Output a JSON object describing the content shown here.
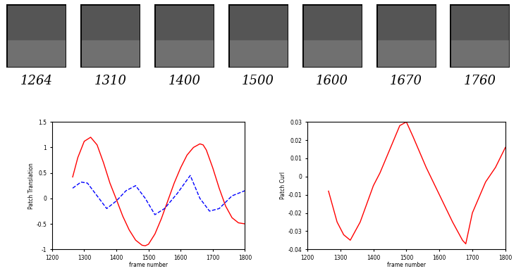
{
  "frames": [
    "1264",
    "1310",
    "1400",
    "1500",
    "1600",
    "1670",
    "1760"
  ],
  "chart_data": [
    {
      "type": "line",
      "xlabel": "frame number",
      "ylabel": "Patch Translation",
      "xlim": [
        1200,
        1800
      ],
      "xticks": [
        1200,
        1300,
        1400,
        1500,
        1600,
        1700,
        1800
      ],
      "ylim": [
        -1,
        1.5
      ],
      "yticks": [
        -1,
        -0.5,
        0,
        0.5,
        1,
        1.5
      ],
      "series": [
        {
          "color": "#ff0000",
          "line_style": "solid",
          "x": [
            1264,
            1280,
            1300,
            1320,
            1340,
            1360,
            1380,
            1400,
            1420,
            1440,
            1460,
            1480,
            1490,
            1500,
            1520,
            1540,
            1560,
            1580,
            1600,
            1620,
            1640,
            1660,
            1670,
            1680,
            1700,
            1720,
            1740,
            1760,
            1780,
            1800
          ],
          "values": [
            0.42,
            0.8,
            1.12,
            1.2,
            1.05,
            0.7,
            0.3,
            -0.02,
            -0.35,
            -0.62,
            -0.82,
            -0.92,
            -0.93,
            -0.9,
            -0.7,
            -0.4,
            -0.05,
            0.3,
            0.6,
            0.85,
            1.0,
            1.07,
            1.05,
            0.95,
            0.6,
            0.2,
            -0.15,
            -0.38,
            -0.48,
            -0.5
          ]
        },
        {
          "color": "#0000ff",
          "line_style": "dashed",
          "x": [
            1264,
            1290,
            1310,
            1340,
            1370,
            1400,
            1430,
            1460,
            1490,
            1520,
            1550,
            1590,
            1630,
            1660,
            1690,
            1720,
            1760,
            1800
          ],
          "values": [
            0.2,
            0.32,
            0.3,
            0.05,
            -0.2,
            -0.05,
            0.15,
            0.25,
            0.0,
            -0.32,
            -0.2,
            0.1,
            0.45,
            0.0,
            -0.25,
            -0.2,
            0.05,
            0.15
          ]
        }
      ]
    },
    {
      "type": "line",
      "xlabel": "frame number",
      "ylabel": "Patch Curl",
      "xlim": [
        1200,
        1800
      ],
      "xticks": [
        1200,
        1300,
        1400,
        1500,
        1600,
        1700,
        1800
      ],
      "ylim": [
        -0.04,
        0.03
      ],
      "yticks": [
        -0.04,
        -0.03,
        -0.02,
        -0.01,
        0,
        0.01,
        0.02,
        0.03
      ],
      "series": [
        {
          "color": "#ff0000",
          "line_style": "solid",
          "x": [
            1264,
            1290,
            1310,
            1330,
            1360,
            1400,
            1420,
            1450,
            1480,
            1500,
            1520,
            1560,
            1600,
            1640,
            1670,
            1680,
            1700,
            1740,
            1770,
            1800
          ],
          "values": [
            -0.008,
            -0.025,
            -0.032,
            -0.035,
            -0.025,
            -0.005,
            0.002,
            0.015,
            0.028,
            0.03,
            0.022,
            0.005,
            -0.01,
            -0.025,
            -0.035,
            -0.037,
            -0.02,
            -0.003,
            0.005,
            0.016
          ]
        }
      ]
    }
  ]
}
